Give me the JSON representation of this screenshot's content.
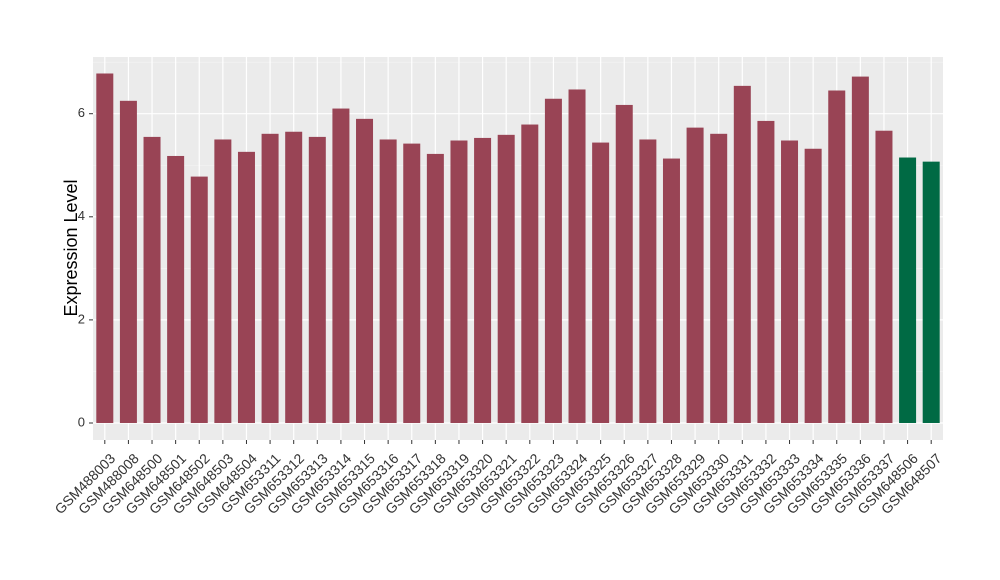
{
  "chart_data": {
    "type": "bar",
    "y_label": "Expression Level",
    "categories": [
      "GSM488003",
      "GSM488008",
      "GSM648500",
      "GSM648501",
      "GSM648502",
      "GSM648503",
      "GSM648504",
      "GSM653311",
      "GSM653312",
      "GSM653313",
      "GSM653314",
      "GSM653315",
      "GSM653316",
      "GSM653317",
      "GSM653318",
      "GSM653319",
      "GSM653320",
      "GSM653321",
      "GSM653322",
      "GSM653323",
      "GSM653324",
      "GSM653325",
      "GSM653326",
      "GSM653327",
      "GSM653328",
      "GSM653329",
      "GSM653330",
      "GSM653331",
      "GSM653332",
      "GSM653333",
      "GSM653334",
      "GSM653335",
      "GSM653336",
      "GSM653337",
      "GSM648506",
      "GSM648507"
    ],
    "values": [
      6.78,
      6.25,
      5.55,
      5.18,
      4.78,
      5.5,
      5.26,
      5.61,
      5.65,
      5.55,
      6.1,
      5.9,
      5.5,
      5.42,
      5.22,
      5.48,
      5.53,
      5.59,
      5.79,
      6.29,
      6.47,
      5.44,
      6.17,
      5.5,
      5.13,
      5.73,
      5.61,
      6.54,
      5.86,
      5.48,
      5.32,
      6.45,
      6.72,
      5.67,
      5.15,
      5.07
    ],
    "colors": [
      "#994455",
      "#994455",
      "#994455",
      "#994455",
      "#994455",
      "#994455",
      "#994455",
      "#994455",
      "#994455",
      "#994455",
      "#994455",
      "#994455",
      "#994455",
      "#994455",
      "#994455",
      "#994455",
      "#994455",
      "#994455",
      "#994455",
      "#994455",
      "#994455",
      "#994455",
      "#994455",
      "#994455",
      "#994455",
      "#994455",
      "#994455",
      "#994455",
      "#994455",
      "#994455",
      "#994455",
      "#994455",
      "#994455",
      "#994455",
      "#006a44",
      "#006a44"
    ],
    "ylim": [
      -0.33,
      7.1
    ],
    "yticks": [
      0,
      2,
      4,
      6
    ],
    "minor_yticks": [
      1,
      3,
      5,
      7
    ],
    "grid": true
  }
}
